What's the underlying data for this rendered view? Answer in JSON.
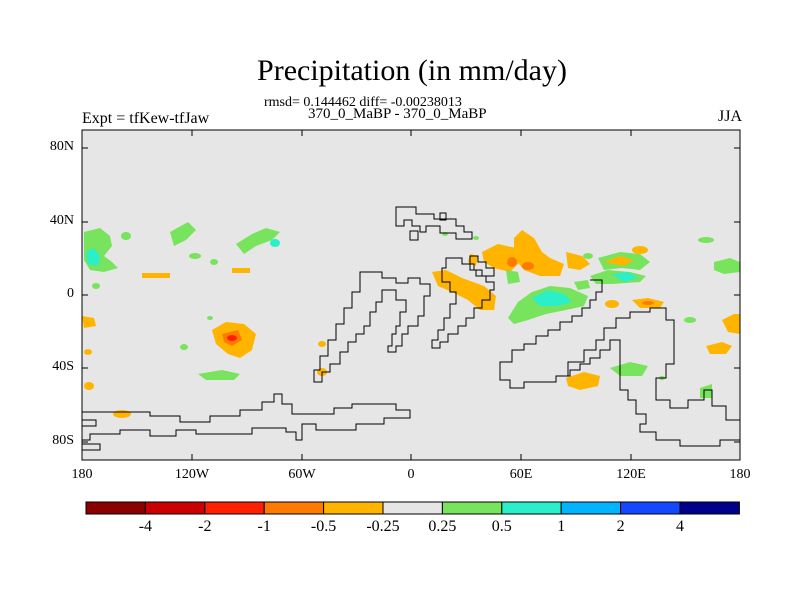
{
  "title": "Precipitation (in mm/day)",
  "stats": "rmsd= 0.144462 diff= -0.00238013",
  "difference_label": "370_0_MaBP - 370_0_MaBP",
  "experiment": "Expt = tfKew-tfJaw",
  "season": "JJA",
  "lat_labels": [
    "80N",
    "40N",
    "0",
    "40S",
    "80S"
  ],
  "lon_labels": [
    "180",
    "120W",
    "60W",
    "0",
    "60E",
    "120E",
    "180"
  ],
  "colorbar": {
    "colors": [
      "#8b0000",
      "#cc0000",
      "#ff2000",
      "#ff7a00",
      "#ffb400",
      "#e6e6e6",
      "#78e35c",
      "#2aefc9",
      "#00b4ff",
      "#1448ff",
      "#00008b"
    ],
    "labels": [
      "-4",
      "-2",
      "-1",
      "-0.5",
      "-0.25",
      "0.25",
      "0.5",
      "1",
      "2",
      "4"
    ]
  },
  "colors": {
    "background": "#e6e6e6",
    "positive": "#78e35c",
    "negative": "#ffb400"
  }
}
